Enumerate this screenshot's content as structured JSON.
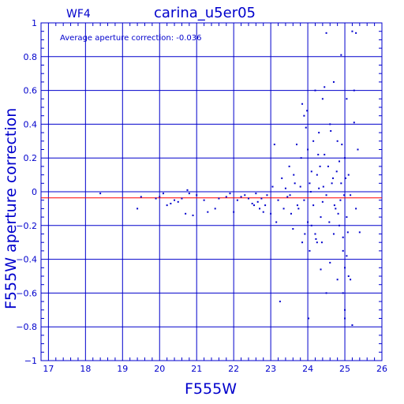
{
  "chart_data": {
    "type": "scatter",
    "title": "carina_u5er05",
    "chip_label": "WF4",
    "annotation": "Average aperture correction: -0.036",
    "xlabel": "F555W",
    "ylabel": "F555W aperture correction",
    "xlim": [
      16.8,
      26.0
    ],
    "ylim": [
      -1.0,
      1.0
    ],
    "xticks": [
      17,
      18,
      19,
      20,
      21,
      22,
      23,
      24,
      25,
      26
    ],
    "yticks": [
      -1,
      -0.8,
      -0.6,
      -0.4,
      -0.2,
      0,
      0.2,
      0.4,
      0.6,
      0.8,
      1
    ],
    "ytick_labels": [
      "−1",
      "−0.8",
      "−0.6",
      "−0.4",
      "−0.2",
      "0",
      "0.2",
      "0.4",
      "0.6",
      "0.8",
      "1"
    ],
    "grid": true,
    "average_correction": -0.036,
    "colors": {
      "axes": "#0000cc",
      "points": "#0000cc",
      "average_line": "#ff0000"
    },
    "points": [
      [
        18.4,
        -0.01
      ],
      [
        19.4,
        -0.1
      ],
      [
        19.5,
        -0.03
      ],
      [
        19.9,
        -0.04
      ],
      [
        20.0,
        -0.03
      ],
      [
        20.1,
        -0.01
      ],
      [
        20.2,
        -0.08
      ],
      [
        20.3,
        -0.07
      ],
      [
        20.4,
        -0.05
      ],
      [
        20.5,
        -0.06
      ],
      [
        20.6,
        -0.04
      ],
      [
        20.7,
        -0.13
      ],
      [
        20.75,
        0.01
      ],
      [
        20.8,
        -0.01
      ],
      [
        20.9,
        -0.14
      ],
      [
        21.0,
        -0.02
      ],
      [
        21.2,
        -0.05
      ],
      [
        21.3,
        -0.12
      ],
      [
        21.5,
        -0.1
      ],
      [
        21.6,
        -0.04
      ],
      [
        21.8,
        -0.03
      ],
      [
        21.9,
        -0.01
      ],
      [
        22.0,
        -0.12
      ],
      [
        22.1,
        -0.05
      ],
      [
        22.2,
        -0.03
      ],
      [
        22.3,
        -0.02
      ],
      [
        22.4,
        -0.04
      ],
      [
        22.5,
        -0.07
      ],
      [
        22.6,
        -0.01
      ],
      [
        22.7,
        -0.1
      ],
      [
        22.8,
        -0.12
      ],
      [
        22.9,
        -0.02
      ],
      [
        23.0,
        -0.13
      ],
      [
        23.05,
        0.03
      ],
      [
        23.1,
        0.28
      ],
      [
        23.15,
        -0.18
      ],
      [
        23.2,
        -0.05
      ],
      [
        23.25,
        -0.65
      ],
      [
        23.3,
        0.08
      ],
      [
        23.35,
        -0.1
      ],
      [
        23.4,
        0.02
      ],
      [
        23.45,
        -0.03
      ],
      [
        23.5,
        0.15
      ],
      [
        23.55,
        -0.13
      ],
      [
        23.6,
        -0.22
      ],
      [
        23.65,
        0.05
      ],
      [
        23.7,
        0.28
      ],
      [
        23.75,
        -0.1
      ],
      [
        23.8,
        0.03
      ],
      [
        23.85,
        -0.3
      ],
      [
        23.85,
        0.52
      ],
      [
        23.9,
        0.45
      ],
      [
        23.9,
        -0.05
      ],
      [
        23.95,
        0.38
      ],
      [
        24.0,
        0.25
      ],
      [
        24.0,
        -0.18
      ],
      [
        24.05,
        0.05
      ],
      [
        24.05,
        -0.35
      ],
      [
        24.1,
        0.12
      ],
      [
        24.1,
        -0.2
      ],
      [
        24.15,
        0.3
      ],
      [
        24.15,
        -0.08
      ],
      [
        24.2,
        0.6
      ],
      [
        24.2,
        -0.25
      ],
      [
        24.25,
        0.1
      ],
      [
        24.25,
        -0.3
      ],
      [
        24.3,
        0.02
      ],
      [
        24.3,
        0.35
      ],
      [
        24.35,
        -0.15
      ],
      [
        24.35,
        -0.46
      ],
      [
        24.4,
        0.55
      ],
      [
        24.4,
        -0.06
      ],
      [
        24.45,
        0.62
      ],
      [
        24.45,
        0.22
      ],
      [
        24.5,
        -0.6
      ],
      [
        24.5,
        0.94
      ],
      [
        24.5,
        -0.02
      ],
      [
        24.55,
        0.15
      ],
      [
        24.6,
        0.4
      ],
      [
        24.6,
        -0.42
      ],
      [
        24.65,
        0.05
      ],
      [
        24.7,
        -0.25
      ],
      [
        24.7,
        0.65
      ],
      [
        24.75,
        -0.1
      ],
      [
        24.8,
        0.3
      ],
      [
        24.8,
        -0.52
      ],
      [
        24.85,
        0.18
      ],
      [
        24.85,
        -0.2
      ],
      [
        24.9,
        0.05
      ],
      [
        24.9,
        0.81
      ],
      [
        24.95,
        -0.27
      ],
      [
        24.95,
        -0.35
      ],
      [
        24.95,
        -0.6
      ],
      [
        25.0,
        -0.7
      ],
      [
        25.0,
        -0.75
      ],
      [
        25.0,
        -0.45
      ],
      [
        25.0,
        0.2
      ],
      [
        25.05,
        -0.15
      ],
      [
        25.05,
        -0.38
      ],
      [
        25.05,
        0.55
      ],
      [
        25.1,
        0.1
      ],
      [
        25.1,
        -0.5
      ],
      [
        25.15,
        -0.52
      ],
      [
        25.15,
        -0.02
      ],
      [
        25.2,
        0.95
      ],
      [
        25.2,
        -0.79
      ],
      [
        25.25,
        0.6
      ],
      [
        25.25,
        0.41
      ],
      [
        25.3,
        0.94
      ],
      [
        25.3,
        -0.1
      ],
      [
        25.35,
        0.25
      ],
      [
        25.4,
        -0.24
      ],
      [
        24.02,
        -0.75
      ],
      [
        24.08,
        0.0
      ],
      [
        24.22,
        -0.28
      ],
      [
        24.28,
        0.22
      ],
      [
        24.33,
        0.15
      ],
      [
        24.38,
        -0.3
      ],
      [
        24.42,
        0.03
      ],
      [
        24.58,
        -0.18
      ],
      [
        24.62,
        0.36
      ],
      [
        24.68,
        0.08
      ],
      [
        24.72,
        -0.08
      ],
      [
        24.78,
        0.12
      ],
      [
        24.82,
        -0.13
      ],
      [
        24.88,
        -0.05
      ],
      [
        24.92,
        0.28
      ],
      [
        24.98,
        -0.02
      ],
      [
        25.02,
        0.08
      ],
      [
        25.08,
        -0.24
      ],
      [
        23.52,
        -0.02
      ],
      [
        23.62,
        0.1
      ],
      [
        23.72,
        -0.08
      ],
      [
        23.82,
        0.2
      ],
      [
        23.92,
        -0.25
      ],
      [
        23.98,
        0.48
      ],
      [
        22.55,
        -0.08
      ],
      [
        22.65,
        -0.06
      ],
      [
        22.75,
        -0.04
      ],
      [
        22.85,
        -0.08
      ]
    ]
  }
}
